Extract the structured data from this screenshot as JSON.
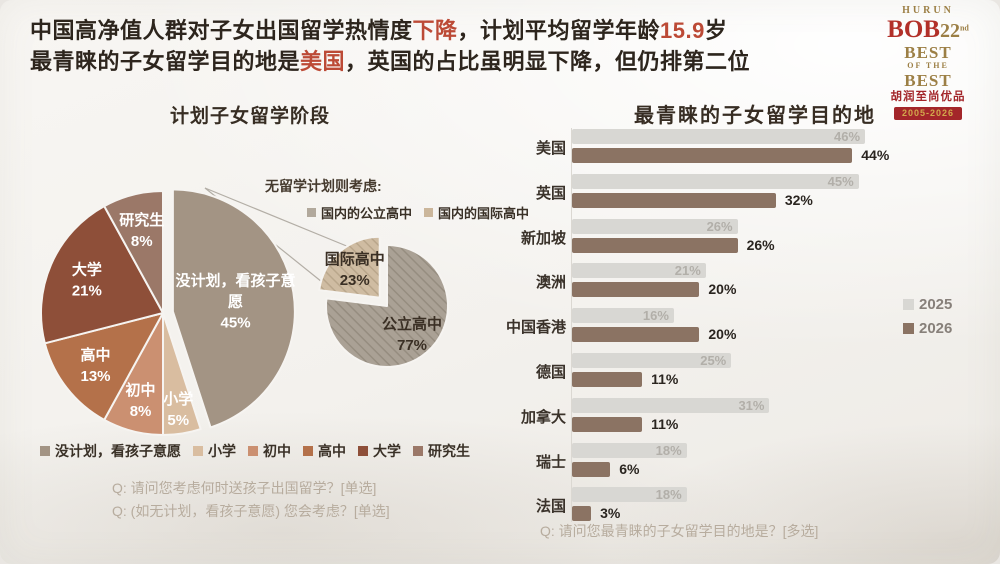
{
  "header": {
    "line1": [
      {
        "text": "中国高净值人群对子女出国留学热情度"
      },
      {
        "text": "下降"
      },
      {
        "text": "，计划平均留学年龄"
      },
      {
        "text": "15.9"
      },
      {
        "text": "岁"
      }
    ],
    "line2": [
      {
        "text": "最青睐的子女留学目的地是"
      },
      {
        "text": "美国"
      },
      {
        "text": "，英国的占比虽明显下降，但仍排第二位"
      }
    ],
    "text_color": "#2d251d",
    "highlight_color": "#bc4a36"
  },
  "logo": {
    "hurun": "HURUN",
    "bob": "BOB",
    "num": "22",
    "sup": "nd",
    "best1": "BEST",
    "ofthe": "OF THE",
    "best2": "BEST",
    "cn": "胡润至尚优品",
    "years": "2005-2026"
  },
  "chart_data": [
    {
      "type": "pie",
      "title": "计划子女留学阶段",
      "slices": [
        {
          "label": "没计划，看孩子意愿",
          "value": 45,
          "color": "#a39484"
        },
        {
          "label": "小学",
          "value": 5,
          "color": "#d9bda0"
        },
        {
          "label": "初中",
          "value": 8,
          "color": "#cb9071"
        },
        {
          "label": "高中",
          "value": 13,
          "color": "#b4714a"
        },
        {
          "label": "大学",
          "value": 21,
          "color": "#8e4f39"
        },
        {
          "label": "研究生",
          "value": 8,
          "color": "#9b7868"
        }
      ],
      "exploded_slice": "没计划，看孩子意愿",
      "label_color": "#ffffff",
      "callout": {
        "title": "无留学计划则考虑:",
        "legend": [
          {
            "label": "国内的公立高中",
            "color": "#b2a99c"
          },
          {
            "label": "国内的国际高中",
            "color": "#cbb69b"
          }
        ],
        "slices": [
          {
            "label": "公立高中",
            "value": 77,
            "color": "#aaa195",
            "hatch": "#968d80"
          },
          {
            "label": "国际高中",
            "value": 23,
            "color": "#cfbca2",
            "hatch": "#b9a68b"
          }
        ],
        "exploded_slice": "国际高中",
        "label_color": "#3a2f24"
      },
      "questions": [
        "Q: 请问您考虑何时送孩子出国留学？[单选]",
        "Q: (如无计划，看孩子意愿) 您会考虑？[单选]"
      ]
    },
    {
      "type": "bar",
      "orientation": "horizontal",
      "title": "最青睐的子女留学目的地",
      "categories": [
        "美国",
        "英国",
        "新加坡",
        "澳洲",
        "中国香港",
        "德国",
        "加拿大",
        "瑞士",
        "法国"
      ],
      "series": [
        {
          "name": "2025",
          "color": "#d8d7d3",
          "label_color": "#b2afa9",
          "values": [
            46,
            45,
            26,
            21,
            16,
            25,
            31,
            18,
            18
          ]
        },
        {
          "name": "2026",
          "color": "#8b7363",
          "label_color": "#2a2520",
          "values": [
            44,
            32,
            26,
            20,
            20,
            11,
            11,
            6,
            3
          ]
        }
      ],
      "xlim": [
        0,
        46
      ],
      "legend_position": "right",
      "question": "Q: 请问您最青睐的子女留学目的地是？[多选]"
    }
  ]
}
